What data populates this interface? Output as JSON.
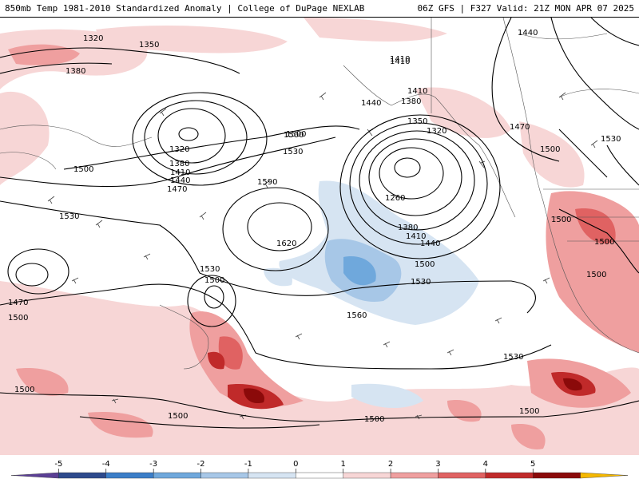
{
  "header": {
    "title_left": "850mb Temp 1981-2010 Standardized Anomaly | College of DuPage NEXLAB",
    "title_right": "06Z GFS | F327 Valid: 21Z MON APR 07 2025"
  },
  "contour_labels": [
    {
      "id": "c1320a",
      "text": "1320"
    },
    {
      "id": "c1350a",
      "text": "1350"
    },
    {
      "id": "c1380a",
      "text": "1380"
    },
    {
      "id": "c1410a",
      "text": "1410"
    },
    {
      "id": "c1440a",
      "text": "1440"
    },
    {
      "id": "c1410b",
      "text": "1410"
    },
    {
      "id": "c1380b",
      "text": "1380"
    },
    {
      "id": "c1350b",
      "text": "1350"
    },
    {
      "id": "c1320b",
      "text": "1320"
    },
    {
      "id": "c1500a",
      "text": "1500"
    },
    {
      "id": "c1530a",
      "text": "1530"
    },
    {
      "id": "c1590",
      "text": "1590"
    },
    {
      "id": "c1320c",
      "text": "1320"
    },
    {
      "id": "c1380c",
      "text": "1380"
    },
    {
      "id": "c1410c",
      "text": "1410"
    },
    {
      "id": "c1440c",
      "text": "1440"
    },
    {
      "id": "c1470a",
      "text": "1470"
    },
    {
      "id": "c1500b",
      "text": "1500"
    },
    {
      "id": "c1530b",
      "text": "1530"
    },
    {
      "id": "c1620",
      "text": "1620"
    },
    {
      "id": "c1260",
      "text": "1260"
    },
    {
      "id": "c1380d",
      "text": "1380"
    },
    {
      "id": "c1410d",
      "text": "1410"
    },
    {
      "id": "c1440d",
      "text": "1440"
    },
    {
      "id": "c1500c",
      "text": "1500"
    },
    {
      "id": "c1530c",
      "text": "1530"
    },
    {
      "id": "c1530d",
      "text": "1530"
    },
    {
      "id": "c1500d",
      "text": "1500"
    },
    {
      "id": "c1470b",
      "text": "1470"
    },
    {
      "id": "c1500e",
      "text": "1500"
    },
    {
      "id": "c1560",
      "text": "1560"
    },
    {
      "id": "c1530e",
      "text": "1530"
    },
    {
      "id": "c1500f",
      "text": "1500"
    },
    {
      "id": "c1500g",
      "text": "1500"
    },
    {
      "id": "c1500h",
      "text": "1500"
    },
    {
      "id": "c1500i",
      "text": "1500"
    },
    {
      "id": "c1440e",
      "text": "1440"
    },
    {
      "id": "c1470c",
      "text": "1470"
    },
    {
      "id": "c1500j",
      "text": "1500"
    },
    {
      "id": "c1530f",
      "text": "1530"
    },
    {
      "id": "c1500k",
      "text": "1500"
    },
    {
      "id": "c1500l",
      "text": "1500"
    },
    {
      "id": "c1500m",
      "text": "1500"
    },
    {
      "id": "c1410e",
      "text": "1410"
    },
    {
      "id": "c1500n",
      "text": "1500"
    }
  ],
  "colorbar": {
    "ticks": [
      "-5",
      "-4",
      "-3",
      "-2",
      "-1",
      "0",
      "1",
      "2",
      "3",
      "4",
      "5"
    ],
    "colors": [
      "#5b3f95",
      "#2d4a8c",
      "#3b7ec8",
      "#6fa8dc",
      "#a7c7e7",
      "#d6e4f2",
      "#ffffff",
      "#f7d6d6",
      "#ef9f9f",
      "#e06262",
      "#c02a2a",
      "#8b0a0a",
      "#f5b800"
    ]
  }
}
